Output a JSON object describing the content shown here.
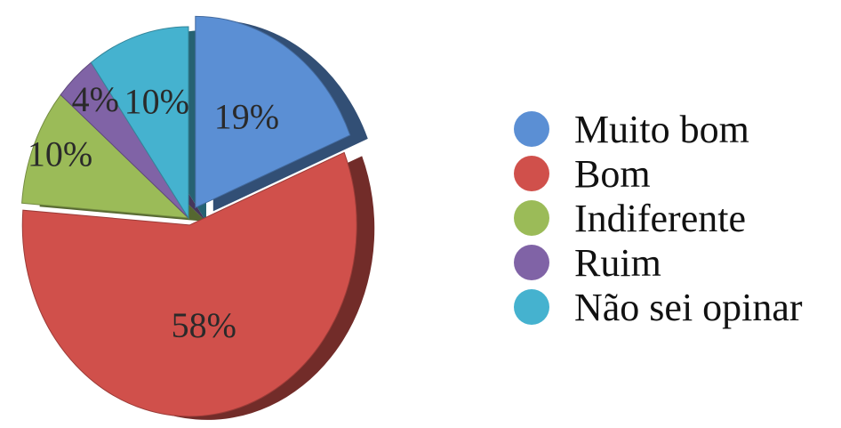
{
  "chart_data": {
    "type": "pie",
    "title": "",
    "legend_position": "right",
    "slices": [
      {
        "label": "Muito bom",
        "value": 19,
        "value_label": "19%",
        "color": "#5b8fd4"
      },
      {
        "label": "Bom",
        "value": 58,
        "value_label": "58%",
        "color": "#d0504b"
      },
      {
        "label": "Indiferente",
        "value": 10,
        "value_label": "10%",
        "color": "#9bbb58"
      },
      {
        "label": "Ruim",
        "value": 4,
        "value_label": "4%",
        "color": "#8063a6"
      },
      {
        "label": "Não sei opinar",
        "value": 10,
        "value_label": "10%",
        "color": "#45b2cf"
      }
    ]
  }
}
